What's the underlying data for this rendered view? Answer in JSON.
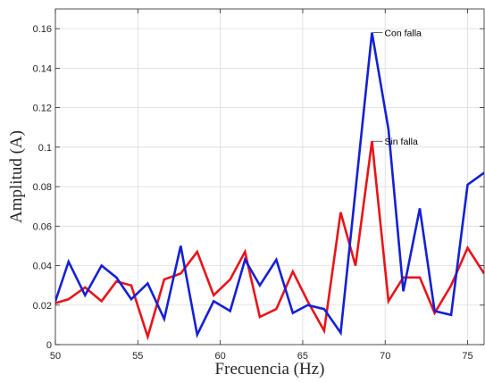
{
  "chart_data": {
    "type": "line",
    "xlabel": "Frecuencia (Hz)",
    "ylabel": "Amplitud (A)",
    "xlim": [
      50,
      76
    ],
    "ylim": [
      0,
      0.17
    ],
    "xticks": [
      50,
      55,
      60,
      65,
      70,
      75
    ],
    "yticks": [
      0,
      0.02,
      0.04,
      0.06,
      0.08,
      0.1,
      0.12,
      0.14,
      0.16
    ],
    "ytick_labels": [
      "0",
      "0.02",
      "0.04",
      "0.06",
      "0.08",
      "0.1",
      "0.12",
      "0.14",
      "0.16"
    ],
    "grid": true,
    "series": [
      {
        "name": "Sin falla",
        "color": "#e8141a",
        "x": [
          50,
          50.8,
          51.8,
          52.8,
          53.7,
          54.6,
          55.6,
          56.6,
          57.6,
          58.6,
          59.6,
          60.6,
          61.5,
          62.4,
          63.4,
          64.4,
          65.3,
          66.3,
          67.3,
          68.2,
          69.2,
          70.2,
          71.1,
          72.1,
          73.0,
          74.0,
          75.0,
          76.0
        ],
        "y": [
          0.021,
          0.023,
          0.029,
          0.022,
          0.032,
          0.03,
          0.004,
          0.033,
          0.036,
          0.047,
          0.025,
          0.033,
          0.047,
          0.014,
          0.018,
          0.037,
          0.022,
          0.007,
          0.067,
          0.04,
          0.103,
          0.022,
          0.034,
          0.034,
          0.016,
          0.03,
          0.049,
          0.036
        ]
      },
      {
        "name": "Con falla",
        "color": "#1420d4",
        "x": [
          50,
          50.8,
          51.8,
          52.8,
          53.7,
          54.6,
          55.6,
          56.6,
          57.6,
          58.6,
          59.6,
          60.6,
          61.5,
          62.4,
          63.4,
          64.4,
          65.3,
          66.3,
          67.3,
          68.2,
          69.2,
          70.2,
          71.1,
          72.1,
          73.0,
          74.0,
          75.0,
          76.0
        ],
        "y": [
          0.022,
          0.042,
          0.025,
          0.04,
          0.034,
          0.023,
          0.031,
          0.013,
          0.05,
          0.005,
          0.022,
          0.017,
          0.043,
          0.03,
          0.043,
          0.016,
          0.02,
          0.018,
          0.006,
          0.078,
          0.158,
          0.109,
          0.027,
          0.069,
          0.017,
          0.015,
          0.081,
          0.087
        ]
      }
    ],
    "annotations": [
      {
        "text": "Con falla",
        "x": 69.2,
        "y": 0.158,
        "series": 1
      },
      {
        "text": "Sin falla",
        "x": 69.2,
        "y": 0.103,
        "series": 0
      }
    ]
  }
}
